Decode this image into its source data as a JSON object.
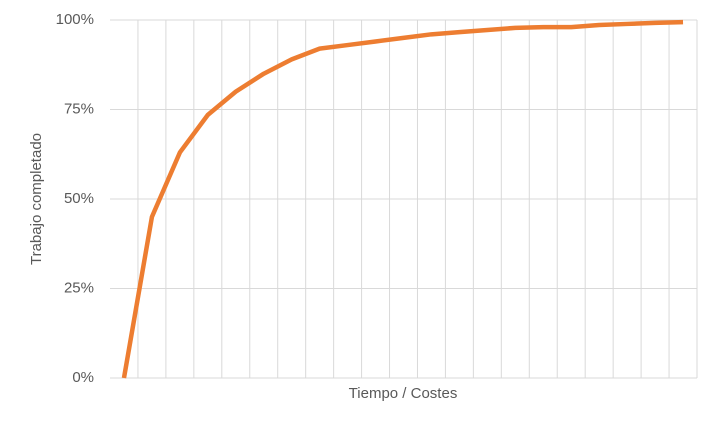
{
  "chart_data": {
    "type": "line",
    "y_label": "Trabajo completado",
    "x_label": "Tiempo / Costes",
    "categories": [
      null,
      null,
      null,
      null,
      null,
      null,
      null,
      null,
      null,
      null,
      null,
      null,
      null,
      null,
      null,
      null,
      null,
      null,
      null,
      null,
      null
    ],
    "values": [
      0,
      45,
      63,
      73.5,
      80,
      85,
      89,
      92,
      93,
      94,
      95,
      96,
      96.6,
      97.2,
      97.8,
      98,
      98,
      98.6,
      98.9,
      99.2,
      99.4
    ],
    "color": "#ed7d31",
    "ylim": [
      0,
      100
    ],
    "yticks": [
      {
        "value": 0,
        "label": "0%"
      },
      {
        "value": 25,
        "label": "25%"
      },
      {
        "value": 50,
        "label": "50%"
      },
      {
        "value": 75,
        "label": "75%"
      },
      {
        "value": 100,
        "label": "100%"
      }
    ],
    "grid": true
  }
}
